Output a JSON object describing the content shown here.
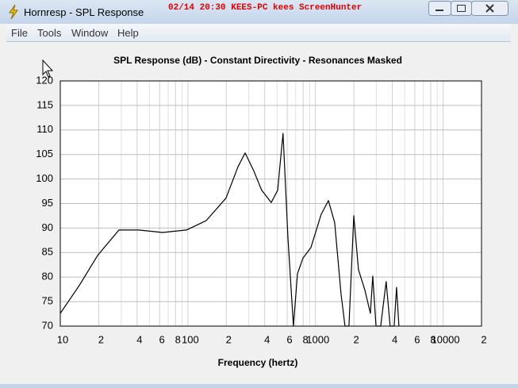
{
  "window": {
    "title": "Hornresp - SPL Response",
    "overlay": "02/14 20:30 KEES-PC kees ScreenHunter"
  },
  "menu": [
    "File",
    "Tools",
    "Window",
    "Help"
  ],
  "chart_data": {
    "type": "line",
    "title": "SPL Response (dB) - Constant Directivity - Resonances Masked",
    "xlabel": "Frequency (hertz)",
    "xlog": true,
    "xlim": [
      10,
      20000
    ],
    "xticks": [
      10,
      {
        "value": 20,
        "label": "2"
      },
      {
        "value": 40,
        "label": "4"
      },
      {
        "value": 60,
        "label": "6"
      },
      {
        "value": 80,
        "label": "8"
      },
      100,
      {
        "value": 200,
        "label": "2"
      },
      {
        "value": 400,
        "label": "4"
      },
      {
        "value": 600,
        "label": "6"
      },
      {
        "value": 800,
        "label": "8"
      },
      1000,
      {
        "value": 2000,
        "label": "2"
      },
      {
        "value": 4000,
        "label": "4"
      },
      {
        "value": 6000,
        "label": "6"
      },
      {
        "value": 8000,
        "label": "8"
      },
      10000,
      {
        "value": 20000,
        "label": "2"
      }
    ],
    "x_minor_grid": [
      30,
      50,
      70,
      90,
      300,
      500,
      700,
      900,
      3000,
      5000,
      7000,
      9000
    ],
    "ylim": [
      70,
      120
    ],
    "yticks": [
      70,
      75,
      80,
      85,
      90,
      95,
      100,
      105,
      110,
      115,
      120
    ],
    "grid": true,
    "x": [
      10,
      14.1,
      19.6,
      28.8,
      41.2,
      63.4,
      97.3,
      139,
      199,
      247,
      281,
      328,
      379,
      450,
      505,
      557,
      608,
      672,
      722,
      798,
      920,
      1109,
      1262,
      1413,
      1585,
      1702,
      1830,
      1995,
      2173,
      2437,
      2692,
      2812,
      2979,
      3244,
      3581,
      3846,
      4137,
      4315,
      4508
    ],
    "series": [
      {
        "color": "#000000",
        "values": [
          72.6,
          78.3,
          84.4,
          89.6,
          89.6,
          89.1,
          89.6,
          91.5,
          96.1,
          102.5,
          105.3,
          101.7,
          97.7,
          95.2,
          97.7,
          109.3,
          88.0,
          70,
          80.7,
          83.9,
          86.0,
          92.8,
          95.6,
          91.1,
          76.6,
          70,
          70,
          92.5,
          81.5,
          77.4,
          72.6,
          80.2,
          70,
          70,
          79.1,
          70,
          70,
          77.9,
          70
        ]
      }
    ]
  }
}
